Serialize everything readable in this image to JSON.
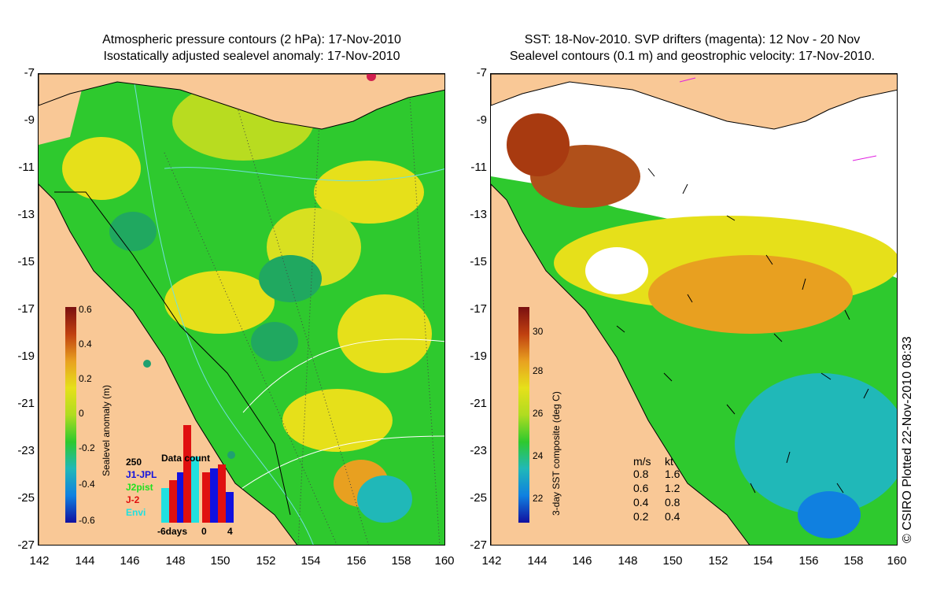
{
  "left_panel": {
    "title_line1": "Atmospheric pressure contours (2 hPa): 17-Nov-2010",
    "title_line2": "Isostatically adjusted sealevel anomaly: 17-Nov-2010",
    "colorbar": {
      "title": "Sealevel anomaly (m)",
      "ticks": [
        "0.6",
        "0.4",
        "0.2",
        "0",
        "-0.2",
        "-0.4",
        "-0.6"
      ]
    },
    "inset": {
      "title": "Data count",
      "max_label": "250",
      "series": [
        "J1-JPL",
        "J2pist",
        "J-2",
        "Envi"
      ],
      "series_colors": [
        "#1010e0",
        "#20e020",
        "#e01010",
        "#20e0e0"
      ],
      "x_ticks": [
        "-6days",
        "0",
        "4"
      ]
    }
  },
  "right_panel": {
    "title_line1": "SST: 18-Nov-2010. SVP drifters (magenta): 12 Nov - 20 Nov",
    "title_line2": "Sealevel contours (0.1 m) and geostrophic velocity: 17-Nov-2010.",
    "colorbar": {
      "title": "3-day SST composite (deg C)",
      "ticks": [
        "30",
        "28",
        "26",
        "24",
        "22"
      ]
    },
    "speed_legend": {
      "header_ms": "m/s",
      "header_kt": "kt",
      "rows": [
        {
          "ms": "0.8",
          "kt": "1.6"
        },
        {
          "ms": "0.6",
          "kt": "1.2"
        },
        {
          "ms": "0.4",
          "kt": "0.8"
        },
        {
          "ms": "0.2",
          "kt": "0.4"
        }
      ]
    }
  },
  "axes": {
    "lat_labels": [
      "-7",
      "-9",
      "-11",
      "-13",
      "-15",
      "-17",
      "-19",
      "-21",
      "-23",
      "-25",
      "-27"
    ],
    "lon_labels": [
      "142",
      "144",
      "146",
      "148",
      "150",
      "152",
      "154",
      "156",
      "158",
      "160"
    ]
  },
  "copyright": "© CSIRO Plotted 22-Nov-2010 08:33",
  "colors": {
    "land": "#f9c896",
    "green": "#2ec92e",
    "yellow": "#e6e01a",
    "orange": "#e8a020",
    "darkred": "#a83a10",
    "cyan": "#20b8b8"
  }
}
